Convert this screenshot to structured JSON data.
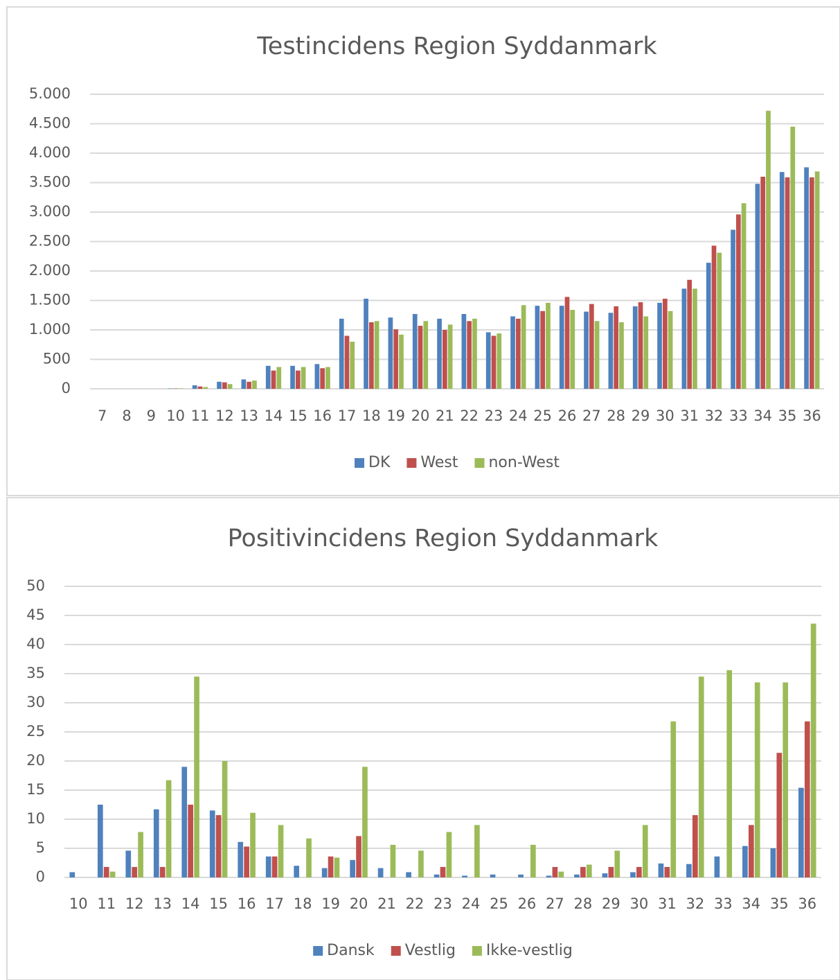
{
  "chart_data": [
    {
      "type": "bar",
      "title": "Testincidens Region Syddanmark",
      "categories": [
        "7",
        "8",
        "9",
        "10",
        "11",
        "12",
        "13",
        "14",
        "15",
        "16",
        "17",
        "18",
        "19",
        "20",
        "21",
        "22",
        "23",
        "24",
        "25",
        "26",
        "27",
        "28",
        "29",
        "30",
        "31",
        "32",
        "33",
        "34",
        "35",
        "36"
      ],
      "series": [
        {
          "name": "DK",
          "color": "#4f81bd",
          "values": [
            0,
            0,
            0,
            5,
            60,
            120,
            160,
            390,
            390,
            420,
            1190,
            1530,
            1210,
            1270,
            1190,
            1270,
            960,
            1230,
            1410,
            1410,
            1310,
            1290,
            1400,
            1460,
            1700,
            2140,
            2700,
            3480,
            3680,
            3760
          ]
        },
        {
          "name": "West",
          "color": "#c0504d",
          "values": [
            0,
            0,
            0,
            5,
            40,
            110,
            120,
            310,
            310,
            350,
            900,
            1130,
            1010,
            1070,
            1000,
            1150,
            900,
            1190,
            1320,
            1560,
            1440,
            1400,
            1470,
            1530,
            1850,
            2430,
            2960,
            3600,
            3590,
            3590
          ]
        },
        {
          "name": "non-West",
          "color": "#9bbb59",
          "values": [
            0,
            0,
            0,
            5,
            30,
            80,
            140,
            370,
            370,
            370,
            800,
            1150,
            920,
            1150,
            1090,
            1190,
            940,
            1420,
            1460,
            1340,
            1150,
            1130,
            1230,
            1320,
            1700,
            2310,
            3150,
            4720,
            4450,
            3690
          ]
        }
      ],
      "ylim": [
        0,
        5000
      ],
      "yticks": [
        0,
        500,
        {
          "value": 1000,
          "label": "1.000"
        },
        {
          "value": 1500,
          "label": "1.500"
        },
        {
          "value": 2000,
          "label": "2.000"
        },
        {
          "value": 2500,
          "label": "2.500"
        },
        {
          "value": 3000,
          "label": "3.000"
        },
        {
          "value": 3500,
          "label": "3.500"
        },
        {
          "value": 4000,
          "label": "4.000"
        },
        {
          "value": 4500,
          "label": "4.500"
        },
        {
          "value": 5000,
          "label": "5.000"
        }
      ],
      "grid": true,
      "legend": "bottom"
    },
    {
      "type": "bar",
      "title": "Positivincidens Region Syddanmark",
      "categories": [
        "10",
        "11",
        "12",
        "13",
        "14",
        "15",
        "16",
        "17",
        "18",
        "19",
        "20",
        "21",
        "22",
        "23",
        "24",
        "25",
        "26",
        "27",
        "28",
        "29",
        "30",
        "31",
        "32",
        "33",
        "34",
        "35",
        "36"
      ],
      "series": [
        {
          "name": "Dansk",
          "color": "#4f81bd",
          "values": [
            0.9,
            12.5,
            4.6,
            11.7,
            19.0,
            11.5,
            6.1,
            3.6,
            2.0,
            1.6,
            3.0,
            1.6,
            0.9,
            0.5,
            0.3,
            0.5,
            0.5,
            0.3,
            0.5,
            0.7,
            0.9,
            2.4,
            2.3,
            3.6,
            5.4,
            5.0,
            15.4
          ]
        },
        {
          "name": "Vestlig",
          "color": "#c0504d",
          "values": [
            0,
            1.8,
            1.8,
            1.8,
            12.5,
            10.7,
            5.3,
            3.6,
            0,
            3.6,
            7.1,
            0,
            0,
            1.8,
            0,
            0,
            0,
            1.8,
            1.8,
            1.8,
            1.8,
            1.8,
            10.7,
            0,
            9.0,
            21.4,
            26.8
          ]
        },
        {
          "name": "Ikke-vestlig",
          "color": "#9bbb59",
          "values": [
            0,
            1.0,
            7.8,
            16.7,
            34.5,
            20.0,
            11.1,
            9.0,
            6.7,
            3.4,
            19.0,
            5.6,
            4.6,
            7.8,
            9.0,
            0,
            5.6,
            1.0,
            2.2,
            4.6,
            9.0,
            26.8,
            34.5,
            35.6,
            33.5,
            33.5,
            43.6
          ]
        }
      ],
      "ylim": [
        0,
        50
      ],
      "yticks": [
        0,
        5,
        10,
        15,
        20,
        25,
        30,
        35,
        40,
        45,
        50
      ],
      "grid": true,
      "legend": "bottom"
    }
  ]
}
